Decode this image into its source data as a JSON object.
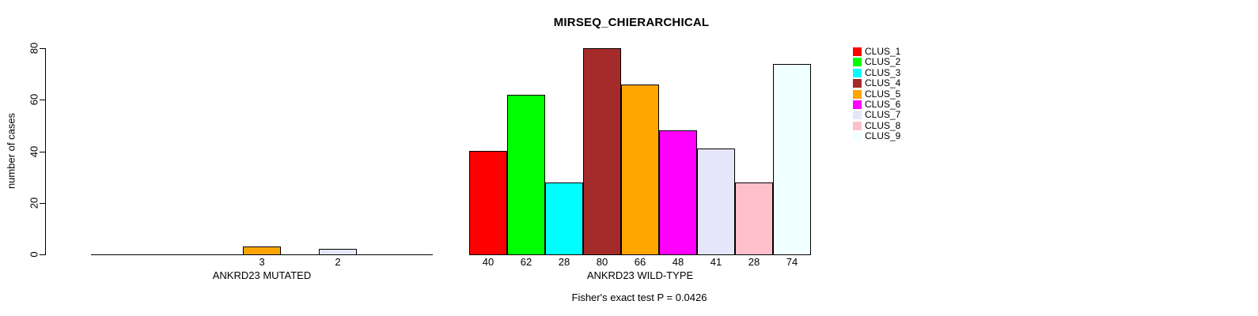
{
  "title": "MIRSEQ_CHIERARCHICAL",
  "footer": "Fisher's exact test P = 0.0426",
  "chart_data": {
    "type": "bar",
    "title": "MIRSEQ_CHIERARCHICAL",
    "ylabel": "number of cases",
    "xlabel": "",
    "ylim": [
      0,
      80
    ],
    "yticks": [
      0,
      20,
      40,
      60,
      80
    ],
    "grid": false,
    "legend_position": "right-inside",
    "series": [
      "CLUS_1",
      "CLUS_2",
      "CLUS_3",
      "CLUS_4",
      "CLUS_5",
      "CLUS_6",
      "CLUS_7",
      "CLUS_8",
      "CLUS_9"
    ],
    "colors": [
      "#FF0000",
      "#00FF00",
      "#00FFFF",
      "#A52A2A",
      "#FFA500",
      "#FF00FF",
      "#E6E6FA",
      "#FFC0CB",
      "#F0FFFF"
    ],
    "bar_border_color": "#000000",
    "groups": [
      {
        "label": "ANKRD23 MUTATED",
        "values": [
          0,
          0,
          0,
          0,
          3,
          0,
          2,
          0,
          0
        ]
      },
      {
        "label": "ANKRD23 WILD-TYPE",
        "values": [
          40,
          62,
          28,
          80,
          66,
          48,
          41,
          28,
          74
        ]
      }
    ],
    "annotation": "Fisher's exact test P = 0.0426"
  }
}
